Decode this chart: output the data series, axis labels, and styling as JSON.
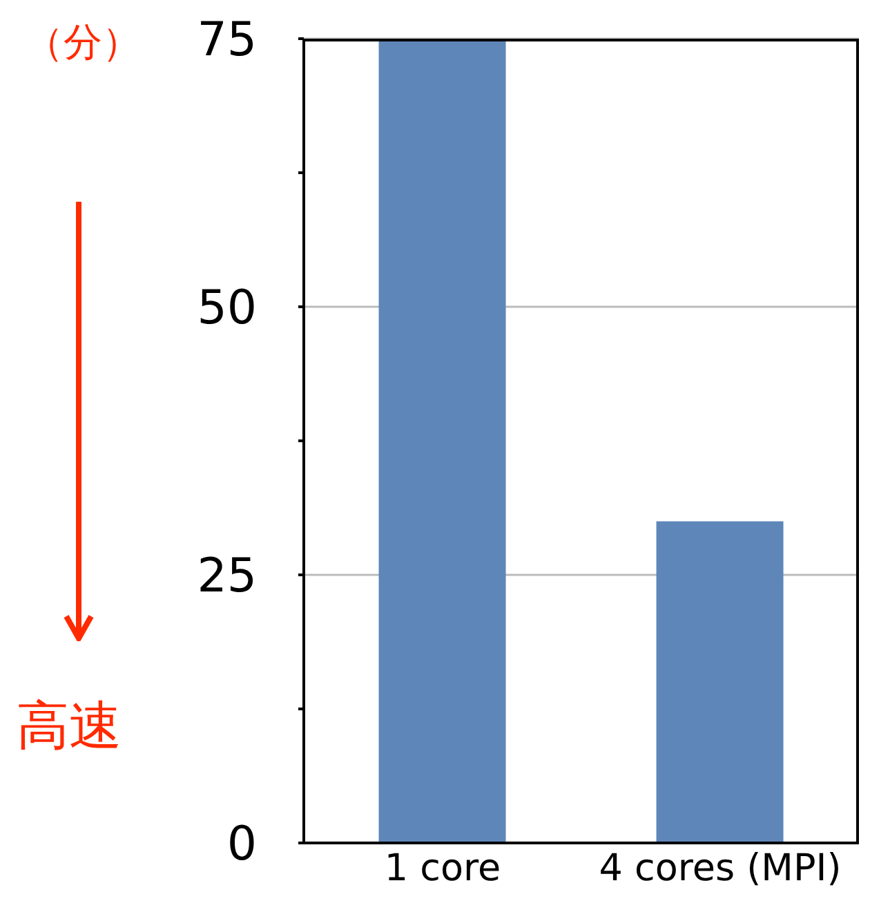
{
  "chart_data": {
    "type": "bar",
    "ylabel": "（分）",
    "categories": [
      "1 core",
      "4 cores (MPI)"
    ],
    "series": [
      {
        "color": "#5e86b8",
        "values": [
          75,
          30
        ]
      }
    ],
    "ylim": [
      0,
      75
    ],
    "yticks": [
      0,
      {
        "value": 12.5,
        "label": null
      },
      25,
      {
        "value": 37.5,
        "label": null
      },
      50,
      {
        "value": 62.5,
        "label": null
      },
      75
    ],
    "grid": "y",
    "annotations": [
      "高速"
    ]
  }
}
